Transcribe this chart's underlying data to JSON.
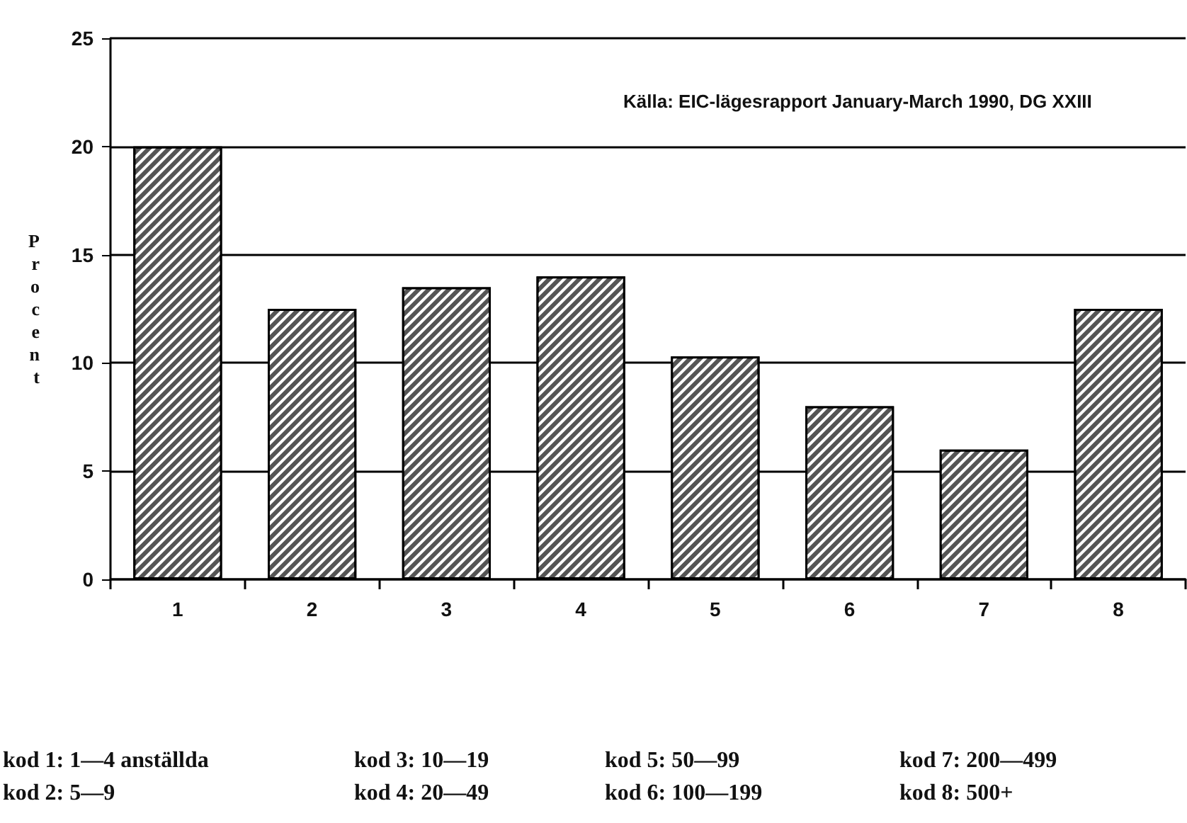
{
  "chart_data": {
    "type": "bar",
    "categories": [
      "1",
      "2",
      "3",
      "4",
      "5",
      "6",
      "7",
      "8"
    ],
    "values": [
      20,
      12.5,
      13.5,
      14,
      10.3,
      8,
      6,
      12.5
    ],
    "color": "#555555",
    "ylabel": "Procent",
    "ylim": [
      0,
      25
    ],
    "yticks": [
      0,
      5,
      10,
      15,
      20,
      25
    ],
    "grid": "y",
    "annotations": [
      "Källa: EIC-lägesrapport January-March 1990, DG XXIII",
      "kod 1: 1—4 anställda",
      "kod 2: 5—9",
      "kod 3: 10—19",
      "kod 4: 20—49",
      "kod 5: 50—99",
      "kod 6: 100—199",
      "kod 7: 200—499",
      "kod 8: 500+"
    ]
  }
}
